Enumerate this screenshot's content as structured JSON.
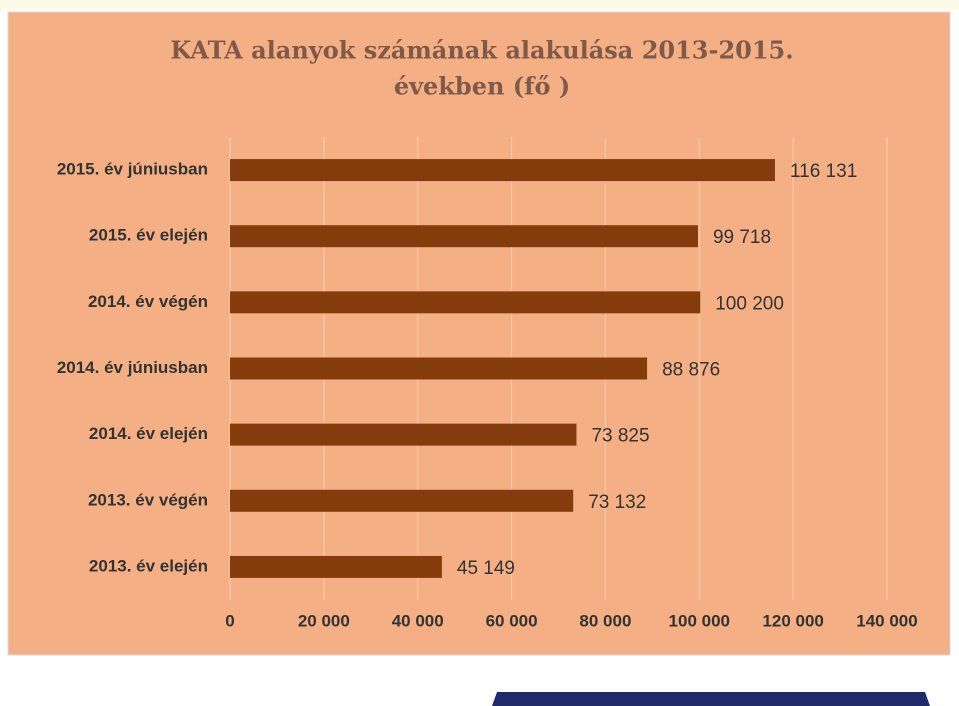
{
  "chart_data": {
    "type": "bar",
    "orientation": "horizontal",
    "title": [
      "KATA alanyok számának alakulása 2013-2015.",
      "években (fő )"
    ],
    "categories": [
      "2015. év júniusban",
      "2015. év elején",
      "2014. év végén",
      "2014. év júniusban",
      "2014. év elején",
      "2013. év végén",
      "2013. év elején"
    ],
    "values": [
      116131,
      99718,
      100200,
      88876,
      73825,
      73132,
      45149
    ],
    "value_labels": [
      "116 131",
      "99 718",
      "100 200",
      "88 876",
      "73 825",
      "73 132",
      "45 149"
    ],
    "color": "#843c0c",
    "xlim": [
      0,
      140000
    ],
    "xticks": [
      0,
      {
        "value": 20000,
        "label": "20 000"
      },
      {
        "value": 40000,
        "label": "40 000"
      },
      {
        "value": 60000,
        "label": "60 000"
      },
      {
        "value": 80000,
        "label": "80 000"
      },
      {
        "value": 100000,
        "label": "100 000"
      },
      {
        "value": 120000,
        "label": "120 000"
      },
      {
        "value": 140000,
        "label": "140 000"
      }
    ],
    "grid": true
  }
}
